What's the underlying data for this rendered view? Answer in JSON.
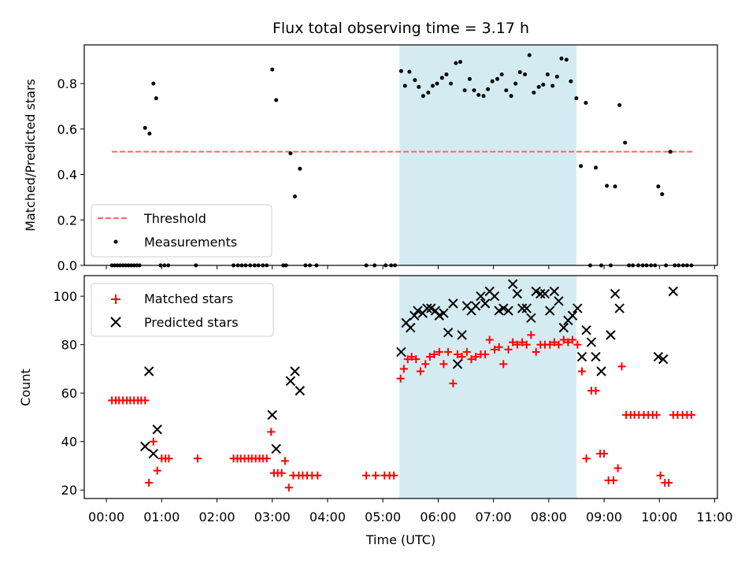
{
  "chart_data": [
    {
      "type": "scatter",
      "title": "Flux total observing time = 3.17 h",
      "ylabel": "Matched/Predicted stars",
      "xlabel": "",
      "ylim": [
        0,
        0.97
      ],
      "xlim": [
        -0.4,
        11.05
      ],
      "xlim_note": "hours after 00:00 UTC",
      "yticks": [
        0.0,
        0.2,
        0.4,
        0.6,
        0.8
      ],
      "ytick_labels": [
        "0.0",
        "0.2",
        "0.4",
        "0.6",
        "0.8"
      ],
      "highlight_span_hours": [
        5.3,
        8.5
      ],
      "highlight_color": "#add8e6",
      "grid": false,
      "legend_position": "lower-left",
      "legend": [
        "Threshold",
        "Measurements"
      ],
      "threshold": {
        "name": "Threshold",
        "value": 0.5,
        "x_range_hours": [
          0.1,
          10.6
        ],
        "color": "#ff6666",
        "style": "dashed"
      },
      "series": [
        {
          "name": "Measurements",
          "marker": "dot",
          "color": "#000000",
          "x_hours": [
            0.1,
            0.15,
            0.2,
            0.25,
            0.3,
            0.35,
            0.4,
            0.45,
            0.5,
            0.55,
            0.6,
            0.7,
            0.78,
            0.85,
            0.9,
            0.98,
            1.05,
            1.12,
            1.62,
            2.3,
            2.38,
            2.45,
            2.52,
            2.6,
            2.68,
            2.75,
            2.83,
            2.9,
            3.0,
            3.07,
            3.2,
            3.25,
            3.33,
            3.41,
            3.5,
            3.6,
            3.68,
            3.8,
            4.7,
            4.85,
            5.05,
            5.15,
            5.22,
            5.33,
            5.4,
            5.48,
            5.58,
            5.65,
            5.73,
            5.82,
            5.9,
            5.98,
            6.07,
            6.15,
            6.23,
            6.32,
            6.4,
            6.48,
            6.57,
            6.65,
            6.73,
            6.82,
            6.9,
            6.98,
            7.07,
            7.15,
            7.23,
            7.32,
            7.4,
            7.48,
            7.57,
            7.65,
            7.73,
            7.82,
            7.9,
            7.98,
            8.07,
            8.15,
            8.23,
            8.32,
            8.4,
            8.5,
            8.58,
            8.67,
            8.75,
            8.85,
            8.95,
            9.05,
            9.12,
            9.2,
            9.28,
            9.38,
            9.45,
            9.52,
            9.62,
            9.7,
            9.77,
            9.85,
            9.92,
            9.98,
            10.05,
            10.12,
            10.2,
            10.28,
            10.35,
            10.43,
            10.5,
            10.58
          ],
          "y": [
            0.0,
            0.0,
            0.0,
            0.0,
            0.0,
            0.0,
            0.0,
            0.0,
            0.0,
            0.0,
            0.0,
            0.605,
            0.58,
            0.8,
            0.735,
            0.0,
            0.0,
            0.0,
            0.0,
            0.0,
            0.0,
            0.0,
            0.0,
            0.0,
            0.0,
            0.0,
            0.0,
            0.0,
            0.862,
            0.727,
            0.0,
            0.0,
            0.493,
            0.303,
            0.425,
            0.0,
            0.0,
            0.0,
            0.0,
            0.0,
            0.0,
            0.0,
            0.0,
            0.855,
            0.79,
            0.852,
            0.815,
            0.785,
            0.745,
            0.76,
            0.79,
            0.8,
            0.825,
            0.84,
            0.8,
            0.89,
            0.895,
            0.77,
            0.82,
            0.77,
            0.75,
            0.745,
            0.775,
            0.81,
            0.82,
            0.84,
            0.77,
            0.745,
            0.8,
            0.85,
            0.84,
            0.925,
            0.76,
            0.785,
            0.795,
            0.84,
            0.79,
            0.83,
            0.91,
            0.905,
            0.81,
            0.735,
            0.437,
            0.715,
            0.0,
            0.43,
            0.0,
            0.35,
            0.0,
            0.347,
            0.705,
            0.54,
            0.0,
            0.0,
            0.0,
            0.0,
            0.0,
            0.0,
            0.0,
            0.347,
            0.313,
            0.0,
            0.5,
            0.0,
            0.0,
            0.0,
            0.0,
            0.0
          ]
        }
      ]
    },
    {
      "type": "scatter",
      "title": "",
      "xlabel": "Time (UTC)",
      "ylabel": "Count",
      "ylim": [
        16.5,
        108.5
      ],
      "xlim": [
        -0.4,
        11.05
      ],
      "xlim_note": "hours after 00:00 UTC",
      "yticks": [
        20,
        40,
        60,
        80,
        100
      ],
      "ytick_labels": [
        "20",
        "40",
        "60",
        "80",
        "100"
      ],
      "xticks_hours": [
        0,
        1,
        2,
        3,
        4,
        5,
        6,
        7,
        8,
        9,
        10,
        11
      ],
      "xtick_labels": [
        "00:00",
        "01:00",
        "02:00",
        "03:00",
        "04:00",
        "05:00",
        "06:00",
        "07:00",
        "08:00",
        "09:00",
        "10:00",
        "11:00"
      ],
      "highlight_span_hours": [
        5.3,
        8.5
      ],
      "highlight_color": "#add8e6",
      "grid": false,
      "legend_position": "upper-left",
      "legend": [
        "Matched stars",
        "Predicted stars"
      ],
      "series": [
        {
          "name": "Matched stars",
          "marker": "plus",
          "color": "#ff0000",
          "x_hours": [
            0.1,
            0.17,
            0.23,
            0.3,
            0.37,
            0.43,
            0.5,
            0.57,
            0.63,
            0.7,
            0.77,
            0.85,
            0.92,
            1.0,
            1.07,
            1.13,
            1.65,
            2.3,
            2.37,
            2.43,
            2.5,
            2.57,
            2.63,
            2.7,
            2.77,
            2.83,
            2.9,
            2.98,
            3.03,
            3.1,
            3.17,
            3.23,
            3.3,
            3.38,
            3.48,
            3.55,
            3.63,
            3.72,
            3.82,
            4.7,
            4.87,
            5.03,
            5.12,
            5.2,
            5.32,
            5.38,
            5.45,
            5.52,
            5.6,
            5.68,
            5.77,
            5.85,
            5.93,
            6.02,
            6.1,
            6.18,
            6.27,
            6.35,
            6.43,
            6.52,
            6.6,
            6.68,
            6.77,
            6.85,
            6.93,
            7.02,
            7.1,
            7.18,
            7.27,
            7.35,
            7.43,
            7.52,
            7.6,
            7.68,
            7.77,
            7.85,
            7.93,
            8.02,
            8.1,
            8.18,
            8.27,
            8.35,
            8.43,
            8.52,
            8.6,
            8.68,
            8.77,
            8.85,
            8.93,
            9.0,
            9.08,
            9.17,
            9.25,
            9.32,
            9.4,
            9.48,
            9.55,
            9.63,
            9.72,
            9.8,
            9.88,
            9.95,
            10.02,
            10.1,
            10.17,
            10.25,
            10.33,
            10.42,
            10.5,
            10.58
          ],
          "y": [
            57,
            57,
            57,
            57,
            57,
            57,
            57,
            57,
            57,
            57,
            23,
            40,
            28,
            33,
            33,
            33,
            33,
            33,
            33,
            33,
            33,
            33,
            33,
            33,
            33,
            33,
            33,
            44,
            27,
            27,
            27,
            32,
            21,
            26,
            26,
            26,
            26,
            26,
            26,
            26,
            26,
            26,
            26,
            26,
            66,
            70,
            74,
            75,
            74,
            69,
            72,
            75,
            76,
            77,
            72,
            77,
            64,
            76,
            75,
            77,
            74,
            75,
            76,
            76,
            82,
            78,
            79,
            72,
            78,
            81,
            80,
            81,
            80,
            84,
            77,
            80,
            80,
            80,
            81,
            80,
            82,
            81,
            82,
            80,
            69,
            33,
            61,
            61,
            35,
            35,
            24,
            24,
            29,
            71,
            51,
            51,
            51,
            51,
            51,
            51,
            51,
            51,
            26,
            23,
            23,
            51,
            51,
            51,
            51,
            51
          ]
        },
        {
          "name": "Predicted stars",
          "marker": "x",
          "color": "#000000",
          "x_hours": [
            0.7,
            0.77,
            0.85,
            0.92,
            3.0,
            3.07,
            3.33,
            3.41,
            3.5,
            5.33,
            5.42,
            5.5,
            5.57,
            5.63,
            5.72,
            5.8,
            5.87,
            5.95,
            6.02,
            6.1,
            6.18,
            6.27,
            6.35,
            6.43,
            6.52,
            6.6,
            6.68,
            6.77,
            6.85,
            6.93,
            7.02,
            7.1,
            7.18,
            7.27,
            7.35,
            7.43,
            7.52,
            7.6,
            7.68,
            7.77,
            7.85,
            7.93,
            8.02,
            8.1,
            8.18,
            8.27,
            8.35,
            8.43,
            8.52,
            8.6,
            8.68,
            8.77,
            8.85,
            8.95,
            9.12,
            9.2,
            9.28,
            9.98,
            10.07,
            10.25
          ],
          "y": [
            38,
            69,
            35,
            45,
            51,
            37,
            65,
            69,
            61,
            77,
            89,
            87,
            92,
            94,
            93,
            95,
            95,
            94,
            92,
            93,
            85,
            97,
            72,
            84,
            96,
            94,
            96,
            100,
            97,
            102,
            100,
            94,
            95,
            94,
            105,
            101,
            95,
            95,
            91,
            102,
            101,
            101,
            94,
            102,
            98,
            87,
            90,
            92,
            95,
            75,
            86,
            81,
            75,
            69,
            84,
            101,
            95,
            75,
            74,
            102
          ]
        }
      ]
    }
  ]
}
